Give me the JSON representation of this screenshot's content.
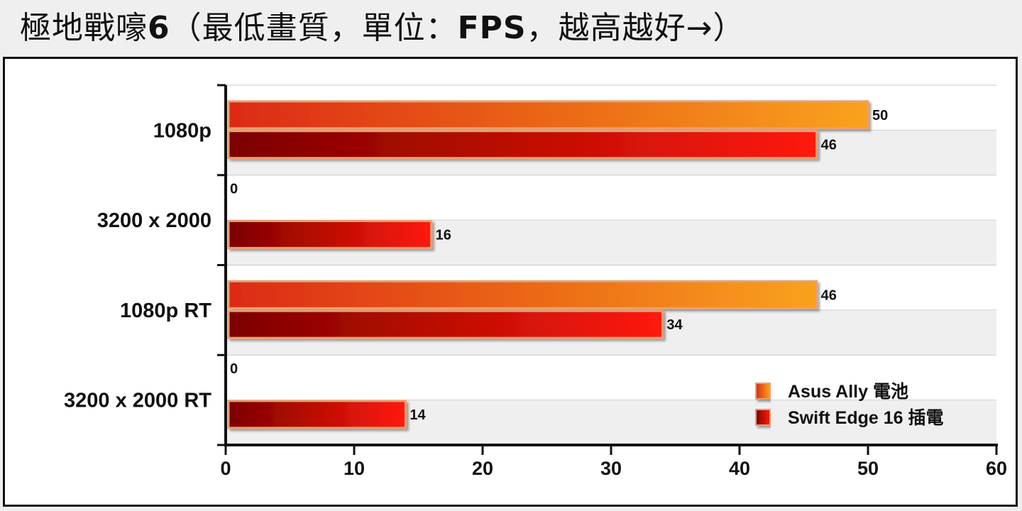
{
  "title_main": "極地戰嚎",
  "title_num": "6",
  "title_rest": "（最低畫質，單位：",
  "title_unit": "FPS",
  "title_end": "，越高越好→）",
  "colors": {
    "series1_light": "#f9a21b",
    "series1_dark": "#dc2a16",
    "series2_light": "#ff1a0a",
    "series2_dark": "#7c0000",
    "bar_border": "#e8a070",
    "band": "#efefef"
  },
  "chart_data": {
    "type": "bar",
    "orientation": "horizontal",
    "categories": [
      "1080p",
      "3200 x 2000",
      "1080p RT",
      "3200 x 2000 RT"
    ],
    "series": [
      {
        "name": "Asus Ally 電池",
        "values": [
          50,
          0,
          46,
          0
        ]
      },
      {
        "name": "Swift Edge 16 插電",
        "values": [
          46,
          16,
          34,
          14
        ]
      }
    ],
    "xlim": [
      0,
      60
    ],
    "xticks": [
      0,
      10,
      20,
      30,
      40,
      50,
      60
    ],
    "legend_position": "bottom-right",
    "grid": true
  }
}
